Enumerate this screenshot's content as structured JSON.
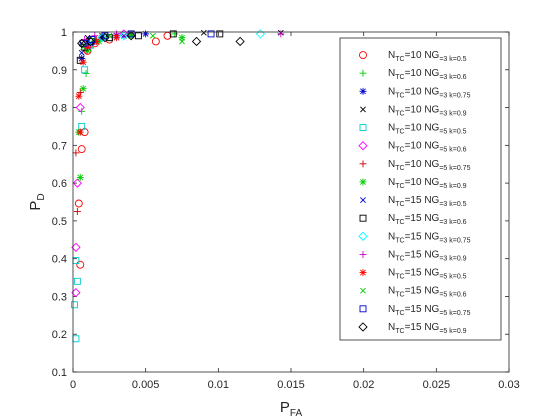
{
  "chart_data": {
    "type": "scatter",
    "xlabel_main": "P",
    "xlabel_sub": "FA",
    "ylabel_main": "P",
    "ylabel_sub": "D",
    "xlim": [
      0,
      0.03
    ],
    "ylim": [
      0.1,
      1
    ],
    "xticks": [
      0,
      0.005,
      0.01,
      0.015,
      0.02,
      0.025,
      0.03
    ],
    "xtick_labels": [
      "0",
      "0.005",
      "0.01",
      "0.015",
      "0.02",
      "0.025",
      "0.03"
    ],
    "yticks": [
      0.1,
      0.2,
      0.3,
      0.4,
      0.5,
      0.6,
      0.7,
      0.8,
      0.9,
      1
    ],
    "ytick_labels": [
      "0.1",
      "0.2",
      "0.3",
      "0.4",
      "0.5",
      "0.6",
      "0.7",
      "0.8",
      "0.9",
      "1"
    ],
    "grid": false,
    "legend_position": "top-right",
    "series": [
      {
        "label": [
          [
            "N",
            "TC",
            "=10 N"
          ],
          [
            "G",
            "=3 k=0.5"
          ]
        ],
        "marker": "circle",
        "color": "#ff0000",
        "points": [
          [
            0.0005,
            0.384
          ],
          [
            0.0004,
            0.546
          ],
          [
            0.0006,
            0.69
          ],
          [
            0.0008,
            0.735
          ],
          [
            0.001,
            0.95
          ],
          [
            0.0015,
            0.97
          ],
          [
            0.0025,
            0.98
          ],
          [
            0.0057,
            0.975
          ],
          [
            0.0065,
            0.99
          ]
        ]
      },
      {
        "label": [
          [
            "N",
            "TC",
            "=10 N"
          ],
          [
            "G",
            "=3 k=0.6"
          ]
        ],
        "marker": "plus",
        "color": "#00cc00",
        "points": [
          [
            0.0006,
            0.79
          ],
          [
            0.0009,
            0.89
          ],
          [
            0.0012,
            0.96
          ],
          [
            0.002,
            0.985
          ],
          [
            0.004,
            0.99
          ],
          [
            0.007,
            0.995
          ]
        ]
      },
      {
        "label": [
          [
            "N",
            "TC",
            "=10 N"
          ],
          [
            "G",
            "=3 k=0.75"
          ]
        ],
        "marker": "asterisk",
        "color": "#0000cc",
        "points": [
          [
            0.0006,
            0.93
          ],
          [
            0.001,
            0.96
          ],
          [
            0.0015,
            0.975
          ],
          [
            0.003,
            0.99
          ],
          [
            0.005,
            0.995
          ]
        ]
      },
      {
        "label": [
          [
            "N",
            "TC",
            "=10 N"
          ],
          [
            "G",
            "=3 k=0.9"
          ]
        ],
        "marker": "x",
        "color": "#000000",
        "points": [
          [
            0.0006,
            0.97
          ],
          [
            0.001,
            0.985
          ],
          [
            0.002,
            0.99
          ],
          [
            0.004,
            0.995
          ],
          [
            0.009,
            0.998
          ],
          [
            0.0143,
            0.998
          ]
        ]
      },
      {
        "label": [
          [
            "N",
            "TC",
            "=10 N"
          ],
          [
            "G",
            "=5 k=0.5"
          ]
        ],
        "marker": "square",
        "color": "#00cccc",
        "points": [
          [
            0.0002,
            0.188
          ],
          [
            0.0001,
            0.278
          ],
          [
            0.0003,
            0.34
          ],
          [
            0.0002,
            0.395
          ],
          [
            0.0006,
            0.75
          ],
          [
            0.0008,
            0.9
          ],
          [
            0.0012,
            0.965
          ],
          [
            0.0025,
            0.985
          ]
        ]
      },
      {
        "label": [
          [
            "N",
            "TC",
            "=10 N"
          ],
          [
            "G",
            "=5 k=0.6"
          ]
        ],
        "marker": "diamond",
        "color": "#ff00ff",
        "points": [
          [
            0.0002,
            0.31
          ],
          [
            0.0002,
            0.43
          ],
          [
            0.0003,
            0.6
          ],
          [
            0.0005,
            0.8
          ],
          [
            0.001,
            0.96
          ],
          [
            0.002,
            0.985
          ],
          [
            0.0035,
            0.995
          ]
        ]
      },
      {
        "label": [
          [
            "N",
            "TC",
            "=10 N"
          ],
          [
            "G",
            "=5 k=0.75"
          ]
        ],
        "marker": "plus",
        "color": "#cc0000",
        "points": [
          [
            0.0003,
            0.525
          ],
          [
            0.0002,
            0.68
          ],
          [
            0.0005,
            0.84
          ],
          [
            0.0009,
            0.95
          ],
          [
            0.0016,
            0.98
          ],
          [
            0.003,
            0.99
          ]
        ]
      },
      {
        "label": [
          [
            "N",
            "TC",
            "=10 N"
          ],
          [
            "G",
            "=5 k=0.9"
          ]
        ],
        "marker": "asterisk",
        "color": "#00cc00",
        "points": [
          [
            0.0005,
            0.615
          ],
          [
            0.0004,
            0.735
          ],
          [
            0.0007,
            0.85
          ],
          [
            0.001,
            0.95
          ],
          [
            0.0018,
            0.975
          ],
          [
            0.004,
            0.99
          ],
          [
            0.0075,
            0.985
          ]
        ]
      },
      {
        "label": [
          [
            "N",
            "TC",
            "=15 N"
          ],
          [
            "G",
            "=3 k=0.5"
          ]
        ],
        "marker": "x",
        "color": "#0000cc",
        "points": [
          [
            0.0006,
            0.945
          ],
          [
            0.0012,
            0.97
          ],
          [
            0.002,
            0.985
          ],
          [
            0.0035,
            0.99
          ]
        ]
      },
      {
        "label": [
          [
            "N",
            "TC",
            "=15 N"
          ],
          [
            "G",
            "=3 k=0.6"
          ]
        ],
        "marker": "square",
        "color": "#000000",
        "points": [
          [
            0.0005,
            0.925
          ],
          [
            0.0008,
            0.96
          ],
          [
            0.0012,
            0.975
          ],
          [
            0.0025,
            0.985
          ],
          [
            0.0045,
            0.99
          ],
          [
            0.0069,
            0.995
          ],
          [
            0.0101,
            0.995
          ]
        ]
      },
      {
        "label": [
          [
            "N",
            "TC",
            "=15 N"
          ],
          [
            "G",
            "=3 k=0.75"
          ]
        ],
        "marker": "diamond",
        "color": "#00ffff",
        "points": [
          [
            0.001,
            0.97
          ],
          [
            0.002,
            0.985
          ],
          [
            0.0035,
            0.99
          ],
          [
            0.0129,
            0.995
          ]
        ]
      },
      {
        "label": [
          [
            "N",
            "TC",
            "=15 N"
          ],
          [
            "G",
            "=3 k=0.9"
          ]
        ],
        "marker": "plus",
        "color": "#cc00cc",
        "points": [
          [
            0.0008,
            0.98
          ],
          [
            0.0015,
            0.99
          ],
          [
            0.003,
            0.995
          ],
          [
            0.0143,
            0.995
          ]
        ]
      },
      {
        "label": [
          [
            "N",
            "TC",
            "=15 N"
          ],
          [
            "G",
            "=5 k=0.5"
          ]
        ],
        "marker": "asterisk",
        "color": "#ff0000",
        "points": [
          [
            0.0005,
            0.735
          ],
          [
            0.0004,
            0.83
          ],
          [
            0.0007,
            0.92
          ],
          [
            0.001,
            0.96
          ],
          [
            0.0016,
            0.975
          ],
          [
            0.003,
            0.985
          ]
        ]
      },
      {
        "label": [
          [
            "N",
            "TC",
            "=15 N"
          ],
          [
            "G",
            "=5 k=0.6"
          ]
        ],
        "marker": "x",
        "color": "#00cc00",
        "points": [
          [
            0.0007,
            0.96
          ],
          [
            0.0014,
            0.98
          ],
          [
            0.0025,
            0.99
          ],
          [
            0.0055,
            0.99
          ],
          [
            0.0075,
            0.975
          ]
        ]
      },
      {
        "label": [
          [
            "N",
            "TC",
            "=15 N"
          ],
          [
            "G",
            "=5 k=0.75"
          ]
        ],
        "marker": "square",
        "color": "#0000cc",
        "points": [
          [
            0.0007,
            0.97
          ],
          [
            0.0013,
            0.98
          ],
          [
            0.0022,
            0.99
          ],
          [
            0.004,
            0.995
          ],
          [
            0.0095,
            0.995
          ]
        ]
      },
      {
        "label": [
          [
            "N",
            "TC",
            "=15 N"
          ],
          [
            "G",
            "=5 k=0.9"
          ]
        ],
        "marker": "diamond",
        "color": "#000000",
        "points": [
          [
            0.0006,
            0.97
          ],
          [
            0.0012,
            0.975
          ],
          [
            0.0022,
            0.985
          ],
          [
            0.004,
            0.99
          ],
          [
            0.0085,
            0.975
          ],
          [
            0.0115,
            0.975
          ]
        ]
      }
    ]
  }
}
